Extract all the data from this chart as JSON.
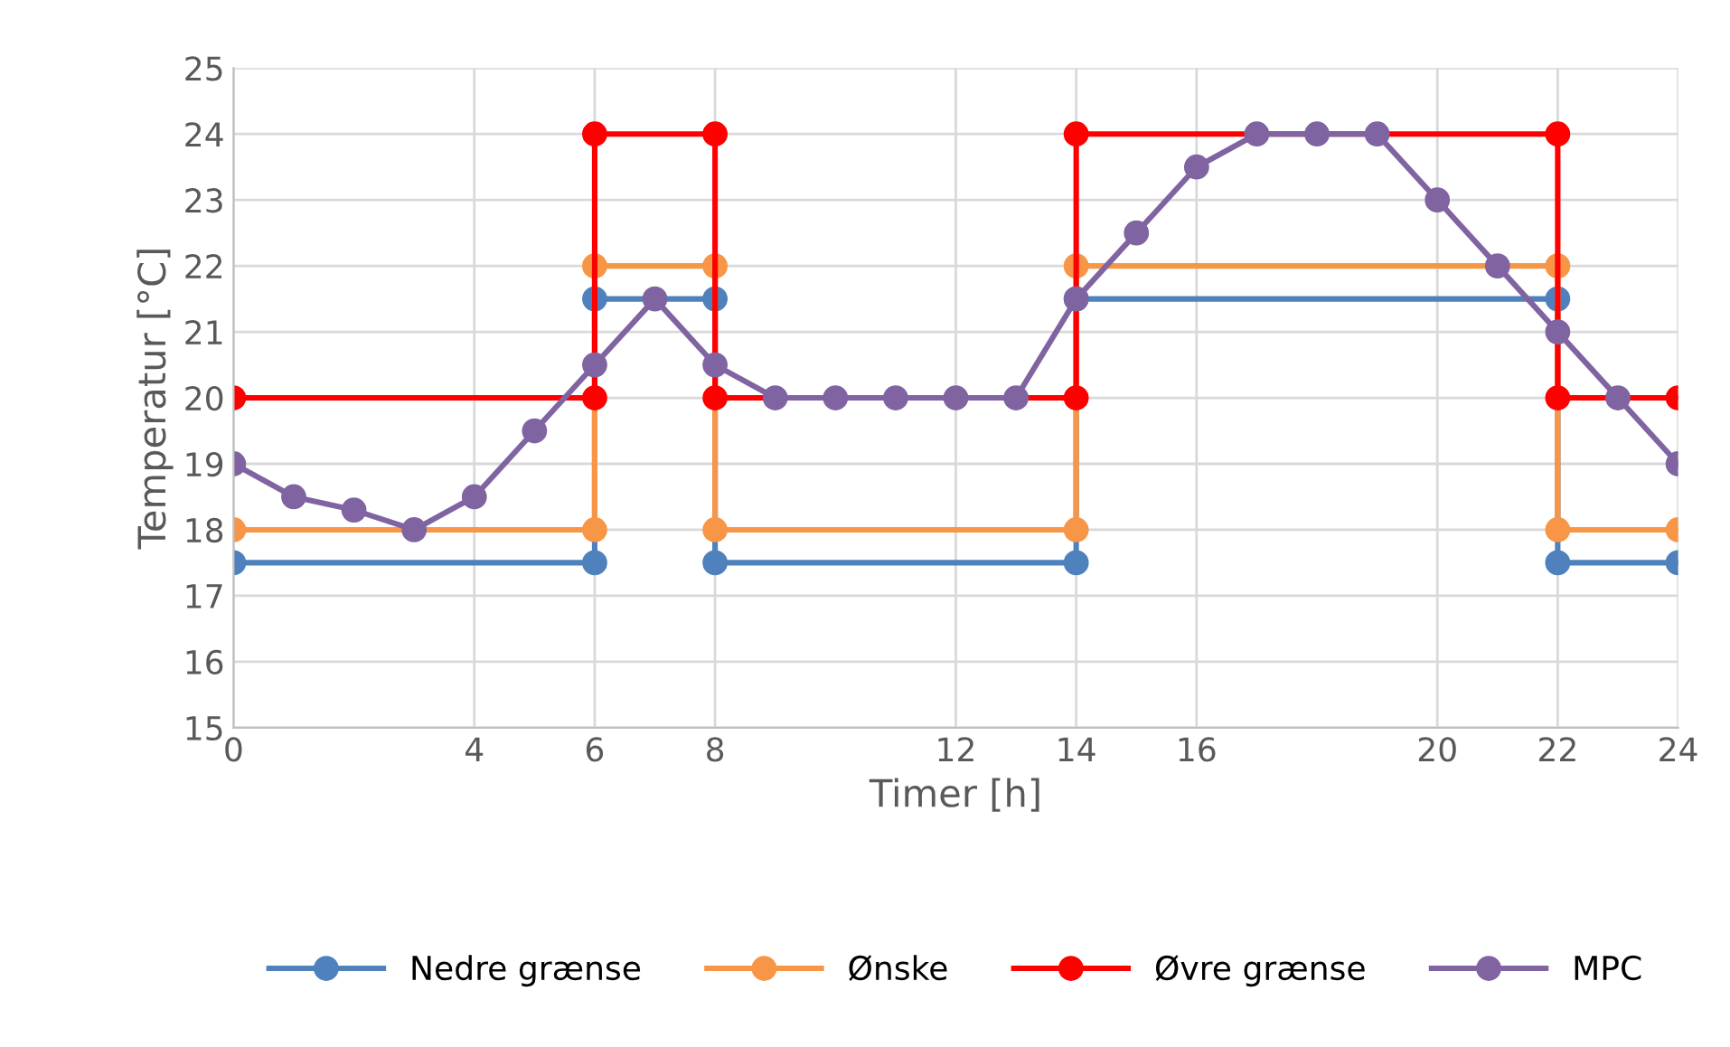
{
  "chart_data": {
    "type": "line",
    "xlabel": "Timer [h]",
    "ylabel": "Temperatur [°C]",
    "xlim": [
      0,
      24
    ],
    "xticks": [
      0,
      4,
      6,
      8,
      12,
      14,
      16,
      20,
      22,
      24
    ],
    "ylim": [
      15,
      25
    ],
    "yticks": [
      15,
      16,
      17,
      18,
      19,
      20,
      21,
      22,
      23,
      24,
      25
    ],
    "grid": true,
    "legend": "bottom",
    "marker": "circle",
    "line_style": "solid",
    "series": [
      {
        "name": "Nedre grænse",
        "color": "#4f81bd",
        "x": [
          0,
          6,
          6,
          8,
          8,
          14,
          14,
          22,
          22,
          24
        ],
        "values": [
          17.5,
          17.5,
          21.5,
          21.5,
          17.5,
          17.5,
          21.5,
          21.5,
          17.5,
          17.5
        ]
      },
      {
        "name": "Ønske",
        "color": "#f79646",
        "x": [
          0,
          6,
          6,
          8,
          8,
          14,
          14,
          22,
          22,
          24
        ],
        "values": [
          18,
          18,
          22,
          22,
          18,
          18,
          22,
          22,
          18,
          18
        ]
      },
      {
        "name": "Øvre grænse",
        "color": "#ff0000",
        "x": [
          0,
          6,
          6,
          8,
          8,
          14,
          14,
          22,
          22,
          24
        ],
        "values": [
          20,
          20,
          24,
          24,
          20,
          20,
          24,
          24,
          20,
          20
        ]
      },
      {
        "name": "MPC",
        "color": "#8064a2",
        "x": [
          0,
          1,
          2,
          3,
          4,
          5,
          6,
          7,
          8,
          9,
          10,
          11,
          12,
          13,
          14,
          15,
          16,
          17,
          18,
          19,
          20,
          21,
          22,
          23,
          24
        ],
        "values": [
          19,
          18.5,
          18.3,
          18,
          18.5,
          19.5,
          20.5,
          21.5,
          20.5,
          20,
          20,
          20,
          20,
          20,
          21.5,
          22.5,
          23.5,
          24,
          24,
          24,
          23,
          22,
          21,
          20,
          19
        ]
      }
    ]
  }
}
